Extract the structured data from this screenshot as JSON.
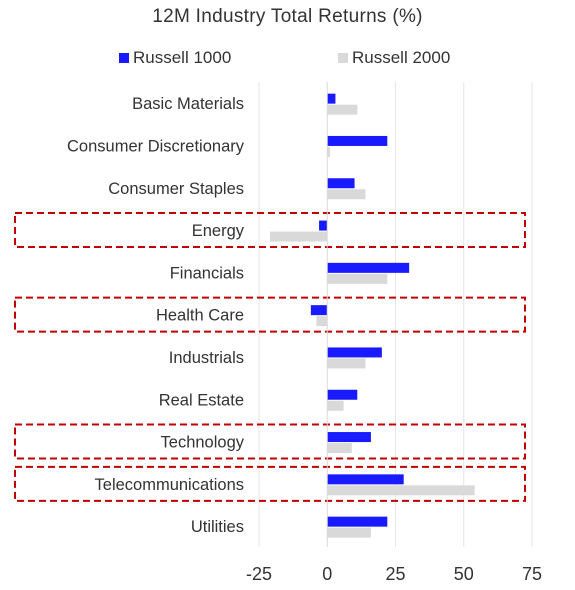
{
  "chart_data": {
    "type": "bar",
    "orientation": "horizontal",
    "title": "12M Industry Total Returns (%)",
    "categories": [
      "Basic Materials",
      "Consumer Discretionary",
      "Consumer Staples",
      "Energy",
      "Financials",
      "Health Care",
      "Industrials",
      "Real Estate",
      "Technology",
      "Telecommunications",
      "Utilities"
    ],
    "series": [
      {
        "name": "Russell 1000",
        "color": "#1a1aff",
        "values": [
          3,
          22,
          10,
          -3,
          30,
          -6,
          20,
          11,
          16,
          28,
          22
        ]
      },
      {
        "name": "Russell 2000",
        "color": "#d9d9d9",
        "values": [
          11,
          1,
          14,
          -21,
          22,
          -4,
          14,
          6,
          9,
          54,
          16
        ]
      }
    ],
    "xlim": [
      -25,
      75
    ],
    "xticks": [
      "-25",
      "0",
      "25",
      "50",
      "75"
    ],
    "grid": "vertical",
    "legend_position": "top",
    "highlighted_categories": [
      "Energy",
      "Health Care",
      "Technology",
      "Telecommunications"
    ],
    "highlight_color": "#c00000"
  }
}
